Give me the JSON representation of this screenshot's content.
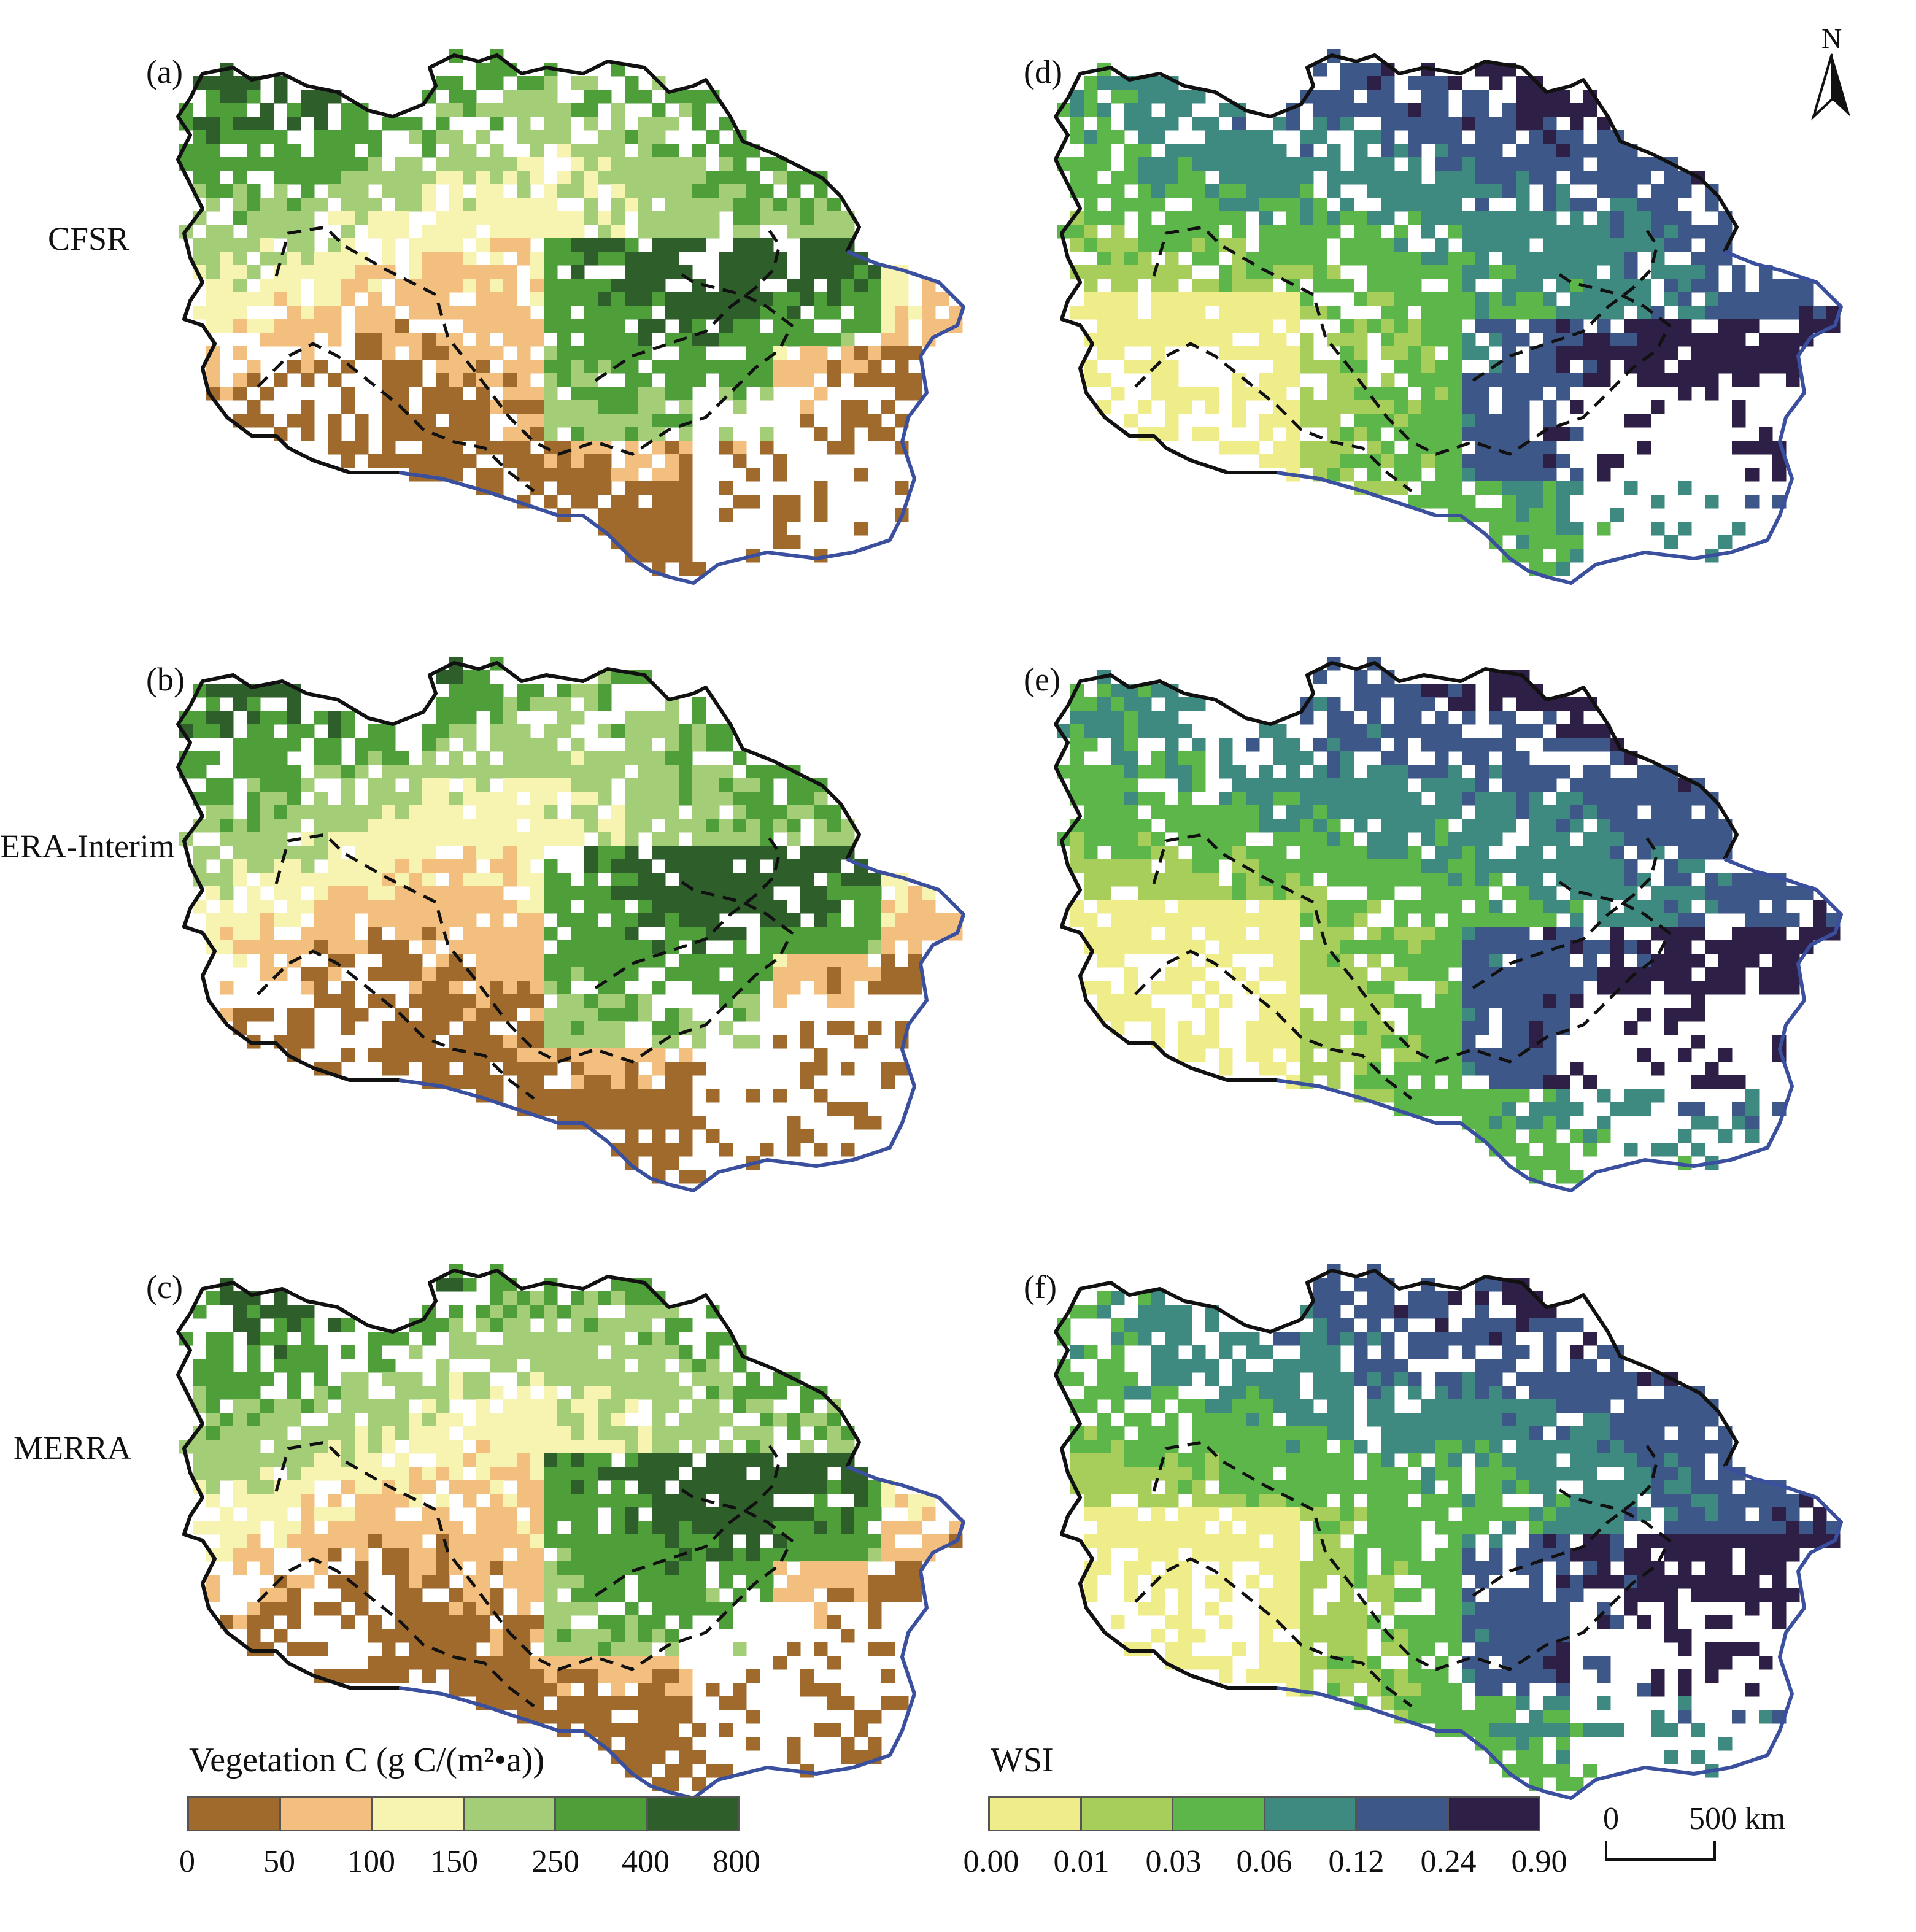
{
  "panels": [
    {
      "id": "a",
      "label": "(a)",
      "row_label": "CFSR",
      "scheme": "veg"
    },
    {
      "id": "d",
      "label": "(d)",
      "row_label": "",
      "scheme": "wsi"
    },
    {
      "id": "b",
      "label": "(b)",
      "row_label": "ERA-Interim",
      "scheme": "veg"
    },
    {
      "id": "e",
      "label": "(e)",
      "row_label": "",
      "scheme": "wsi"
    },
    {
      "id": "c",
      "label": "(c)",
      "row_label": "MERRA",
      "scheme": "veg"
    },
    {
      "id": "f",
      "label": "(f)",
      "row_label": "",
      "scheme": "wsi"
    }
  ],
  "row_labels": {
    "cfsr": "CFSR",
    "era": "ERA-Interim",
    "merra": "MERRA"
  },
  "legend_veg": {
    "title": "Vegetation C (g C/(m²•a))",
    "colors": [
      "#a06a2c",
      "#f3bf7e",
      "#f7f3b0",
      "#a3cd77",
      "#4e9e3a",
      "#2e5e2a"
    ],
    "ticks": [
      "0",
      "50",
      "100",
      "150",
      "250",
      "400",
      "800"
    ]
  },
  "legend_wsi": {
    "title": "WSI",
    "colors": [
      "#efec8a",
      "#a7cd5b",
      "#5db64a",
      "#3e8a80",
      "#3e5789",
      "#2d1f45"
    ],
    "ticks": [
      "0.00",
      "0.01",
      "0.03",
      "0.06",
      "0.12",
      "0.24",
      "0.90"
    ]
  },
  "north_arrow": {
    "label": "N"
  },
  "scale_bar": {
    "start": "0",
    "end": "500 km"
  },
  "colors": {
    "outline": "#111111",
    "blue_border": "#3a4f9e",
    "inner_dash": "#111111"
  }
}
